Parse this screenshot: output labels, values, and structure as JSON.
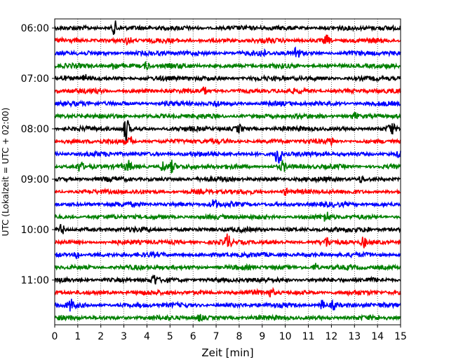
{
  "chart_data": {
    "type": "line",
    "xlabel": "Zeit  [min]",
    "ylabel": "UTC (Lokalzeit = UTC + 02:00)",
    "xlim": [
      0,
      15
    ],
    "x_ticks": [
      "0",
      "1",
      "2",
      "3",
      "4",
      "5",
      "6",
      "7",
      "8",
      "9",
      "10",
      "11",
      "12",
      "13",
      "14",
      "15"
    ],
    "y_tick_labels": [
      "06:00",
      "07:00",
      "08:00",
      "09:00",
      "10:00",
      "11:00"
    ],
    "grid": "vertical dotted lines at each minute",
    "trace_colors": [
      "#000000",
      "#ff0000",
      "#0000ff",
      "#008000"
    ],
    "row_interval_min": 15,
    "rows": [
      {
        "start": "06:00",
        "events": [
          [
            2.6,
            1.4
          ]
        ]
      },
      {
        "start": "06:15",
        "events": [
          [
            3.2,
            0.8
          ],
          [
            11.8,
            0.9
          ]
        ]
      },
      {
        "start": "06:30",
        "events": [
          [
            10.5,
            1.4
          ],
          [
            9.0,
            0.7
          ]
        ]
      },
      {
        "start": "06:45",
        "events": [
          [
            2.6,
            0.9
          ],
          [
            4.0,
            0.7
          ]
        ]
      },
      {
        "start": "07:00",
        "events": [
          [
            1.3,
            0.6
          ]
        ]
      },
      {
        "start": "07:15",
        "events": [
          [
            6.5,
            0.6
          ]
        ]
      },
      {
        "start": "07:30",
        "events": [
          [
            7.0,
            0.6
          ]
        ]
      },
      {
        "start": "07:45",
        "events": [
          [
            13.0,
            0.6
          ]
        ]
      },
      {
        "start": "08:00",
        "events": [
          [
            3.1,
            2.4
          ],
          [
            14.6,
            1.2
          ],
          [
            8.0,
            0.7
          ]
        ]
      },
      {
        "start": "08:15",
        "events": [
          [
            3.3,
            0.8
          ],
          [
            12.0,
            0.6
          ]
        ]
      },
      {
        "start": "08:30",
        "events": [
          [
            9.7,
            3.0
          ],
          [
            15.0,
            0.8
          ]
        ]
      },
      {
        "start": "08:45",
        "events": [
          [
            1.1,
            0.9
          ],
          [
            3.2,
            0.9
          ],
          [
            4.7,
            1.1
          ],
          [
            5.1,
            1.2
          ],
          [
            9.9,
            0.9
          ]
        ]
      },
      {
        "start": "09:00",
        "events": [
          [
            13.3,
            0.6
          ]
        ]
      },
      {
        "start": "09:15",
        "events": [
          [
            10.0,
            0.6
          ]
        ]
      },
      {
        "start": "09:30",
        "events": [
          [
            6.9,
            0.9
          ]
        ]
      },
      {
        "start": "09:45",
        "events": [
          [
            11.8,
            1.0
          ]
        ]
      },
      {
        "start": "10:00",
        "events": [
          [
            0.3,
            1.0
          ],
          [
            13.5,
            0.6
          ]
        ]
      },
      {
        "start": "10:15",
        "events": [
          [
            7.5,
            1.5
          ],
          [
            11.8,
            0.7
          ],
          [
            13.4,
            0.9
          ]
        ]
      },
      {
        "start": "10:30",
        "events": [
          [
            1.0,
            0.8
          ]
        ]
      },
      {
        "start": "10:45",
        "events": [
          [
            11.3,
            0.8
          ]
        ]
      },
      {
        "start": "11:00",
        "events": [
          [
            4.3,
            1.1
          ]
        ]
      },
      {
        "start": "11:15",
        "events": [
          [
            9.4,
            0.7
          ]
        ]
      },
      {
        "start": "11:30",
        "events": [
          [
            0.7,
            1.0
          ],
          [
            11.6,
            0.9
          ],
          [
            12.1,
            0.7
          ]
        ]
      },
      {
        "start": "11:45",
        "events": [
          [
            6.3,
            0.6
          ]
        ]
      }
    ]
  }
}
